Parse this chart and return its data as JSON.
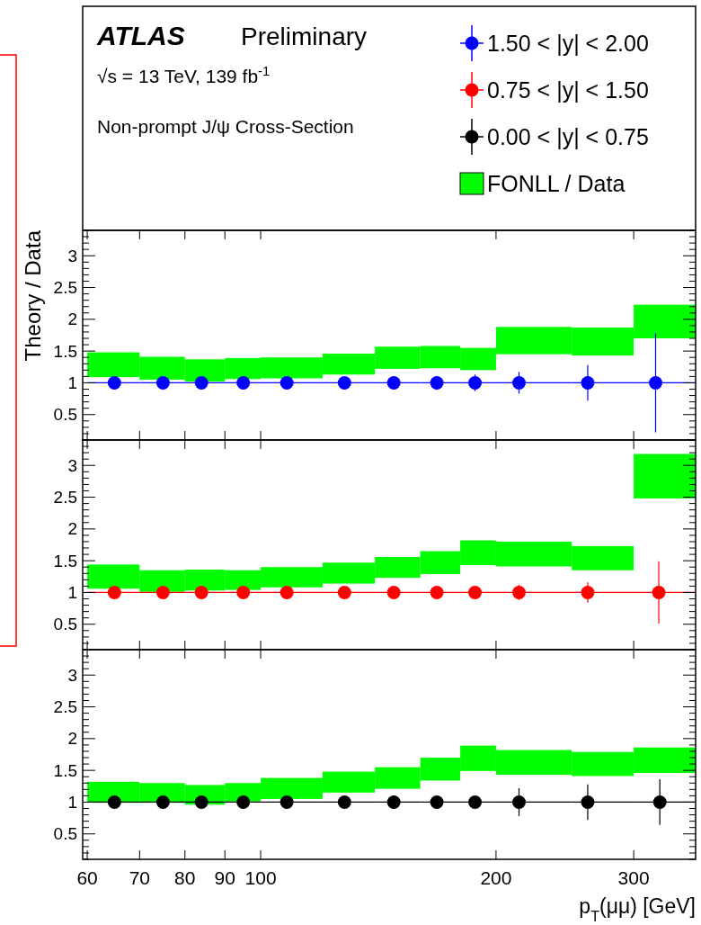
{
  "chart_data": [
    {
      "type": "scatter",
      "title": "ATLAS",
      "subtitle": "Preliminary",
      "annotations": [
        "√s = 13 TeV, 139 fb$^{-1}$",
        "Non-prompt J/ψ Cross-Section"
      ],
      "ylabel": "Theory / Data",
      "log": "x",
      "xlim": [
        59.2,
        360
      ],
      "xticks": [
        60,
        70,
        80,
        90,
        100,
        200,
        300
      ],
      "ylim": [
        0.1,
        3.4
      ],
      "yticks": [
        {
          "value": 0.1,
          "label": null
        },
        {
          "value": 0.2,
          "label": null
        },
        {
          "value": 0.3,
          "label": null
        },
        {
          "value": 0.4,
          "label": null
        },
        0.5,
        {
          "value": 0.6,
          "label": null
        },
        {
          "value": 0.7,
          "label": null
        },
        {
          "value": 0.8,
          "label": null
        },
        {
          "value": 0.9,
          "label": null
        },
        1,
        {
          "value": 1.1,
          "label": null
        },
        {
          "value": 1.2,
          "label": null
        },
        {
          "value": 1.3,
          "label": null
        },
        {
          "value": 1.4,
          "label": null
        },
        1.5,
        {
          "value": 1.6,
          "label": null
        },
        {
          "value": 1.7,
          "label": null
        },
        {
          "value": 1.8,
          "label": null
        },
        {
          "value": 1.9,
          "label": null
        },
        2,
        {
          "value": 2.1,
          "label": null
        },
        {
          "value": 2.2,
          "label": null
        },
        {
          "value": 2.3,
          "label": null
        },
        {
          "value": 2.4,
          "label": null
        },
        2.5,
        {
          "value": 2.6,
          "label": null
        },
        {
          "value": 2.7,
          "label": null
        },
        {
          "value": 2.8,
          "label": null
        },
        {
          "value": 2.9,
          "label": null
        },
        3,
        {
          "value": 3.1,
          "label": null
        },
        {
          "value": 3.2,
          "label": null
        },
        {
          "value": 3.3,
          "label": null
        },
        {
          "value": 3.4,
          "label": null
        }
      ],
      "tick_labels": "y",
      "legend": "top right",
      "marker": "circle",
      "series": [
        {
          "type": "bar",
          "name": "FONLL / Data",
          "color": "#00ff00",
          "x": [
            64.81,
            74.83,
            84.85,
            94.87,
            109.54,
            129.61,
            149.67,
            169.71,
            189.74,
            223.61,
            273.86,
            328.63
          ],
          "base": [
            1.09,
            1.05,
            1.02,
            1.06,
            1.07,
            1.13,
            1.22,
            1.23,
            1.2,
            1.45,
            1.43,
            1.7
          ],
          "values": [
            0.39,
            0.36,
            0.35,
            0.33,
            0.33,
            0.33,
            0.35,
            0.35,
            0.35,
            0.43,
            0.44,
            0.53
          ]
        },
        {
          "name": "1.50 < |y| < 2.00",
          "color": "#0000ff",
          "x": [
            65,
            75,
            84,
            95,
            108,
            128,
            148,
            168,
            188,
            214,
            262,
            320
          ],
          "values": [
            1,
            1,
            1,
            1,
            1,
            1,
            1,
            1,
            1,
            1,
            1,
            1
          ],
          "errors": [
            null,
            null,
            null,
            null,
            null,
            null,
            null,
            0.11,
            0.13,
            0.17,
            0.28,
            0.78
          ],
          "xerrors": [
            [
              60,
              70
            ],
            [
              70,
              80
            ],
            [
              80,
              90
            ],
            [
              90,
              100
            ],
            [
              100,
              120
            ],
            [
              120,
              140
            ],
            [
              140,
              160
            ],
            [
              160,
              180
            ],
            [
              180,
              200
            ],
            [
              200,
              250
            ],
            [
              250,
              300
            ],
            [
              300,
              360
            ]
          ]
        }
      ]
    },
    {
      "type": "scatter",
      "log": "x",
      "xlim": [
        59.2,
        360
      ],
      "xticks": [
        60,
        70,
        80,
        90,
        100,
        200,
        300
      ],
      "ylim": [
        0.1,
        3.4
      ],
      "yticks": [
        {
          "value": 0.1,
          "label": null
        },
        {
          "value": 0.2,
          "label": null
        },
        {
          "value": 0.3,
          "label": null
        },
        {
          "value": 0.4,
          "label": null
        },
        0.5,
        {
          "value": 0.6,
          "label": null
        },
        {
          "value": 0.7,
          "label": null
        },
        {
          "value": 0.8,
          "label": null
        },
        {
          "value": 0.9,
          "label": null
        },
        1,
        {
          "value": 1.1,
          "label": null
        },
        {
          "value": 1.2,
          "label": null
        },
        {
          "value": 1.3,
          "label": null
        },
        {
          "value": 1.4,
          "label": null
        },
        1.5,
        {
          "value": 1.6,
          "label": null
        },
        {
          "value": 1.7,
          "label": null
        },
        {
          "value": 1.8,
          "label": null
        },
        {
          "value": 1.9,
          "label": null
        },
        2,
        {
          "value": 2.1,
          "label": null
        },
        {
          "value": 2.2,
          "label": null
        },
        {
          "value": 2.3,
          "label": null
        },
        {
          "value": 2.4,
          "label": null
        },
        2.5,
        {
          "value": 2.6,
          "label": null
        },
        {
          "value": 2.7,
          "label": null
        },
        {
          "value": 2.8,
          "label": null
        },
        {
          "value": 2.9,
          "label": null
        },
        3,
        {
          "value": 3.1,
          "label": null
        },
        {
          "value": 3.2,
          "label": null
        },
        {
          "value": 3.3,
          "label": null
        },
        {
          "value": 3.4,
          "label": null
        }
      ],
      "tick_labels": "y",
      "legend": "top right",
      "marker": "circle",
      "series": [
        {
          "type": "bar",
          "color": "#00ff00",
          "x": [
            64.81,
            74.83,
            84.85,
            94.87,
            109.54,
            129.61,
            149.67,
            169.71,
            189.74,
            223.61,
            273.86,
            328.63
          ],
          "base": [
            1.06,
            1.01,
            1.03,
            1.04,
            1.08,
            1.14,
            1.23,
            1.29,
            1.43,
            1.41,
            1.35,
            2.48
          ],
          "values": [
            0.38,
            0.34,
            0.33,
            0.31,
            0.32,
            0.33,
            0.33,
            0.36,
            0.39,
            0.39,
            0.38,
            0.7
          ]
        },
        {
          "name": "0.75 < |y| < 1.50",
          "color": "#ff0000",
          "x": [
            65,
            75,
            84,
            95,
            108,
            128,
            148,
            168,
            188,
            214,
            262,
            323
          ],
          "values": [
            1,
            1,
            1,
            1,
            1,
            1,
            1,
            1,
            1,
            1,
            1,
            1
          ],
          "errors": [
            null,
            null,
            null,
            null,
            null,
            null,
            null,
            null,
            0.05,
            0.12,
            0.16,
            0.49
          ],
          "xerrors": [
            [
              60,
              70
            ],
            [
              70,
              80
            ],
            [
              80,
              90
            ],
            [
              90,
              100
            ],
            [
              100,
              120
            ],
            [
              120,
              140
            ],
            [
              140,
              160
            ],
            [
              160,
              180
            ],
            [
              180,
              200
            ],
            [
              200,
              250
            ],
            [
              250,
              300
            ],
            [
              300,
              360
            ]
          ]
        }
      ]
    },
    {
      "type": "scatter",
      "xlabel": "p$_{T}$(μμ) [GeV]",
      "log": "x",
      "xlim": [
        59.2,
        360
      ],
      "xticks": [
        60,
        70,
        80,
        90,
        100,
        200,
        300
      ],
      "ylim": [
        0.1,
        3.4
      ],
      "yticks": [
        {
          "value": 0.1,
          "label": null
        },
        {
          "value": 0.2,
          "label": null
        },
        {
          "value": 0.3,
          "label": null
        },
        {
          "value": 0.4,
          "label": null
        },
        0.5,
        {
          "value": 0.6,
          "label": null
        },
        {
          "value": 0.7,
          "label": null
        },
        {
          "value": 0.8,
          "label": null
        },
        {
          "value": 0.9,
          "label": null
        },
        1,
        {
          "value": 1.1,
          "label": null
        },
        {
          "value": 1.2,
          "label": null
        },
        {
          "value": 1.3,
          "label": null
        },
        {
          "value": 1.4,
          "label": null
        },
        1.5,
        {
          "value": 1.6,
          "label": null
        },
        {
          "value": 1.7,
          "label": null
        },
        {
          "value": 1.8,
          "label": null
        },
        {
          "value": 1.9,
          "label": null
        },
        2,
        {
          "value": 2.1,
          "label": null
        },
        {
          "value": 2.2,
          "label": null
        },
        {
          "value": 2.3,
          "label": null
        },
        {
          "value": 2.4,
          "label": null
        },
        2.5,
        {
          "value": 2.6,
          "label": null
        },
        {
          "value": 2.7,
          "label": null
        },
        {
          "value": 2.8,
          "label": null
        },
        {
          "value": 2.9,
          "label": null
        },
        3,
        {
          "value": 3.1,
          "label": null
        },
        {
          "value": 3.2,
          "label": null
        },
        {
          "value": 3.3,
          "label": null
        },
        {
          "value": 3.4,
          "label": null
        }
      ],
      "legend": "top right",
      "marker": "circle",
      "series": [
        {
          "type": "bar",
          "color": "#00ff00",
          "x": [
            64.81,
            74.83,
            84.85,
            94.87,
            109.54,
            129.61,
            149.67,
            169.71,
            189.74,
            223.61,
            273.86,
            328.63
          ],
          "base": [
            0.99,
            0.99,
            0.96,
            1.01,
            1.05,
            1.15,
            1.21,
            1.34,
            1.49,
            1.43,
            1.41,
            1.46
          ],
          "values": [
            0.33,
            0.31,
            0.31,
            0.29,
            0.33,
            0.33,
            0.34,
            0.36,
            0.4,
            0.39,
            0.38,
            0.4
          ]
        },
        {
          "name": "0.00 < |y| < 0.75",
          "color": "#000000",
          "x": [
            65,
            75,
            84,
            95,
            108,
            128,
            148,
            168,
            188,
            214,
            262,
            324
          ],
          "values": [
            1,
            1,
            1,
            1,
            1,
            1,
            1,
            1,
            1,
            1,
            1,
            1
          ],
          "errors": [
            null,
            null,
            null,
            null,
            null,
            null,
            0.1,
            null,
            null,
            0.22,
            0.28,
            0.36
          ],
          "xerrors": [
            [
              60,
              70
            ],
            [
              70,
              80
            ],
            [
              80,
              90
            ],
            [
              90,
              100
            ],
            [
              100,
              120
            ],
            [
              120,
              140
            ],
            [
              140,
              160
            ],
            [
              160,
              180
            ],
            [
              180,
              200
            ],
            [
              200,
              250
            ],
            [
              250,
              300
            ],
            [
              300,
              360
            ]
          ]
        }
      ]
    }
  ]
}
